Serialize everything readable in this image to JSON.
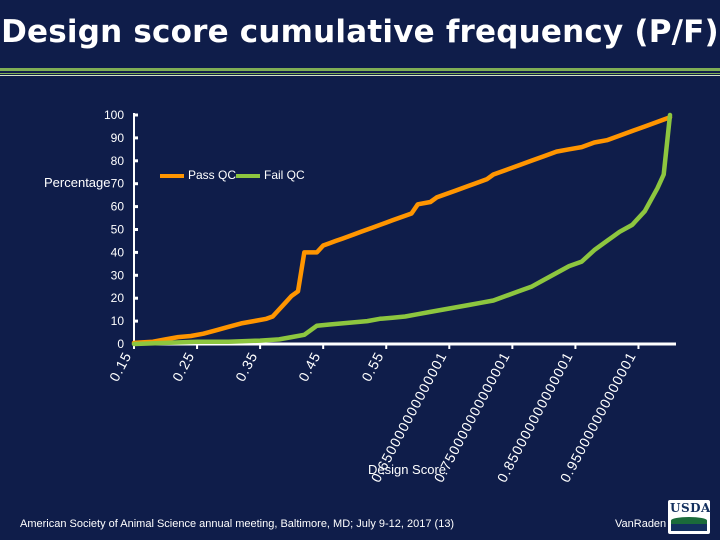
{
  "slide": {
    "title": "Design score cumulative frequency (P/F)",
    "footer": "American Society of Animal Science  annual meeting, Baltimore, MD; July 9-12, 2017   (13)",
    "author": "VanRaden",
    "logo_text": "USDA"
  },
  "colors": {
    "background": "#0f1d4a",
    "accent": "#7fae55",
    "pass_series": "#ff9500",
    "fail_series": "#8dc63f",
    "axis": "#ffffff"
  },
  "chart_data": {
    "type": "line",
    "title": "",
    "xlabel": "Design Score",
    "ylabel": "Percentage",
    "ylim": [
      0,
      100
    ],
    "xlim": [
      0.15,
      1.0
    ],
    "y_ticks": [
      "0",
      "10",
      "20",
      "30",
      "40",
      "50",
      "60",
      "70",
      "80",
      "90",
      "100"
    ],
    "x_tick_values": [
      0.15,
      0.25,
      0.35,
      0.45,
      0.55,
      0.65,
      0.75,
      0.85,
      0.95
    ],
    "x_tick_labels": [
      "0.15",
      "0.25",
      "0.35",
      "0.45",
      "0.55",
      "0.650000000000001",
      "0.750000000000001",
      "0.850000000000001",
      "0.950000000000001"
    ],
    "legend_position": "top-center",
    "grid": false,
    "series": [
      {
        "name": "Pass QC",
        "x": [
          0.15,
          0.18,
          0.2,
          0.22,
          0.24,
          0.26,
          0.28,
          0.3,
          0.32,
          0.34,
          0.36,
          0.37,
          0.38,
          0.39,
          0.4,
          0.41,
          0.42,
          0.43,
          0.44,
          0.45,
          0.46,
          0.47,
          0.48,
          0.5,
          0.51,
          0.52,
          0.53,
          0.55,
          0.56,
          0.58,
          0.59,
          0.6,
          0.62,
          0.63,
          0.65,
          0.66,
          0.68,
          0.69,
          0.71,
          0.72,
          0.74,
          0.76,
          0.78,
          0.8,
          0.82,
          0.84,
          0.86,
          0.88,
          0.9,
          0.92,
          0.94,
          0.96,
          0.98,
          1.0
        ],
        "values": [
          0.5,
          1,
          2,
          3,
          3.5,
          4.5,
          6,
          7.5,
          9,
          10,
          11,
          12,
          15,
          18,
          21,
          23,
          40,
          40,
          40,
          43,
          44,
          45,
          46,
          48,
          49,
          50,
          51,
          53,
          54,
          56,
          57,
          61,
          62,
          64,
          66,
          67,
          69,
          70,
          72,
          74,
          76,
          78,
          80,
          82,
          84,
          85,
          86,
          88,
          89,
          91,
          93,
          95,
          97,
          99
        ]
      },
      {
        "name": "Fail QC",
        "x": [
          0.15,
          0.2,
          0.25,
          0.3,
          0.35,
          0.38,
          0.4,
          0.42,
          0.44,
          0.46,
          0.48,
          0.5,
          0.52,
          0.54,
          0.56,
          0.58,
          0.6,
          0.62,
          0.64,
          0.66,
          0.68,
          0.7,
          0.72,
          0.74,
          0.76,
          0.78,
          0.8,
          0.82,
          0.84,
          0.85,
          0.86,
          0.88,
          0.9,
          0.91,
          0.92,
          0.94,
          0.95,
          0.96,
          0.97,
          0.98,
          0.99,
          1.0
        ],
        "values": [
          0,
          0.5,
          1,
          1,
          1.5,
          2,
          3,
          4,
          8,
          8.5,
          9,
          9.5,
          10,
          11,
          11.5,
          12,
          13,
          14,
          15,
          16,
          17,
          18,
          19,
          21,
          23,
          25,
          28,
          31,
          34,
          35,
          36,
          41,
          45,
          47,
          49,
          52,
          55,
          58,
          63,
          68,
          74,
          100
        ]
      }
    ]
  }
}
